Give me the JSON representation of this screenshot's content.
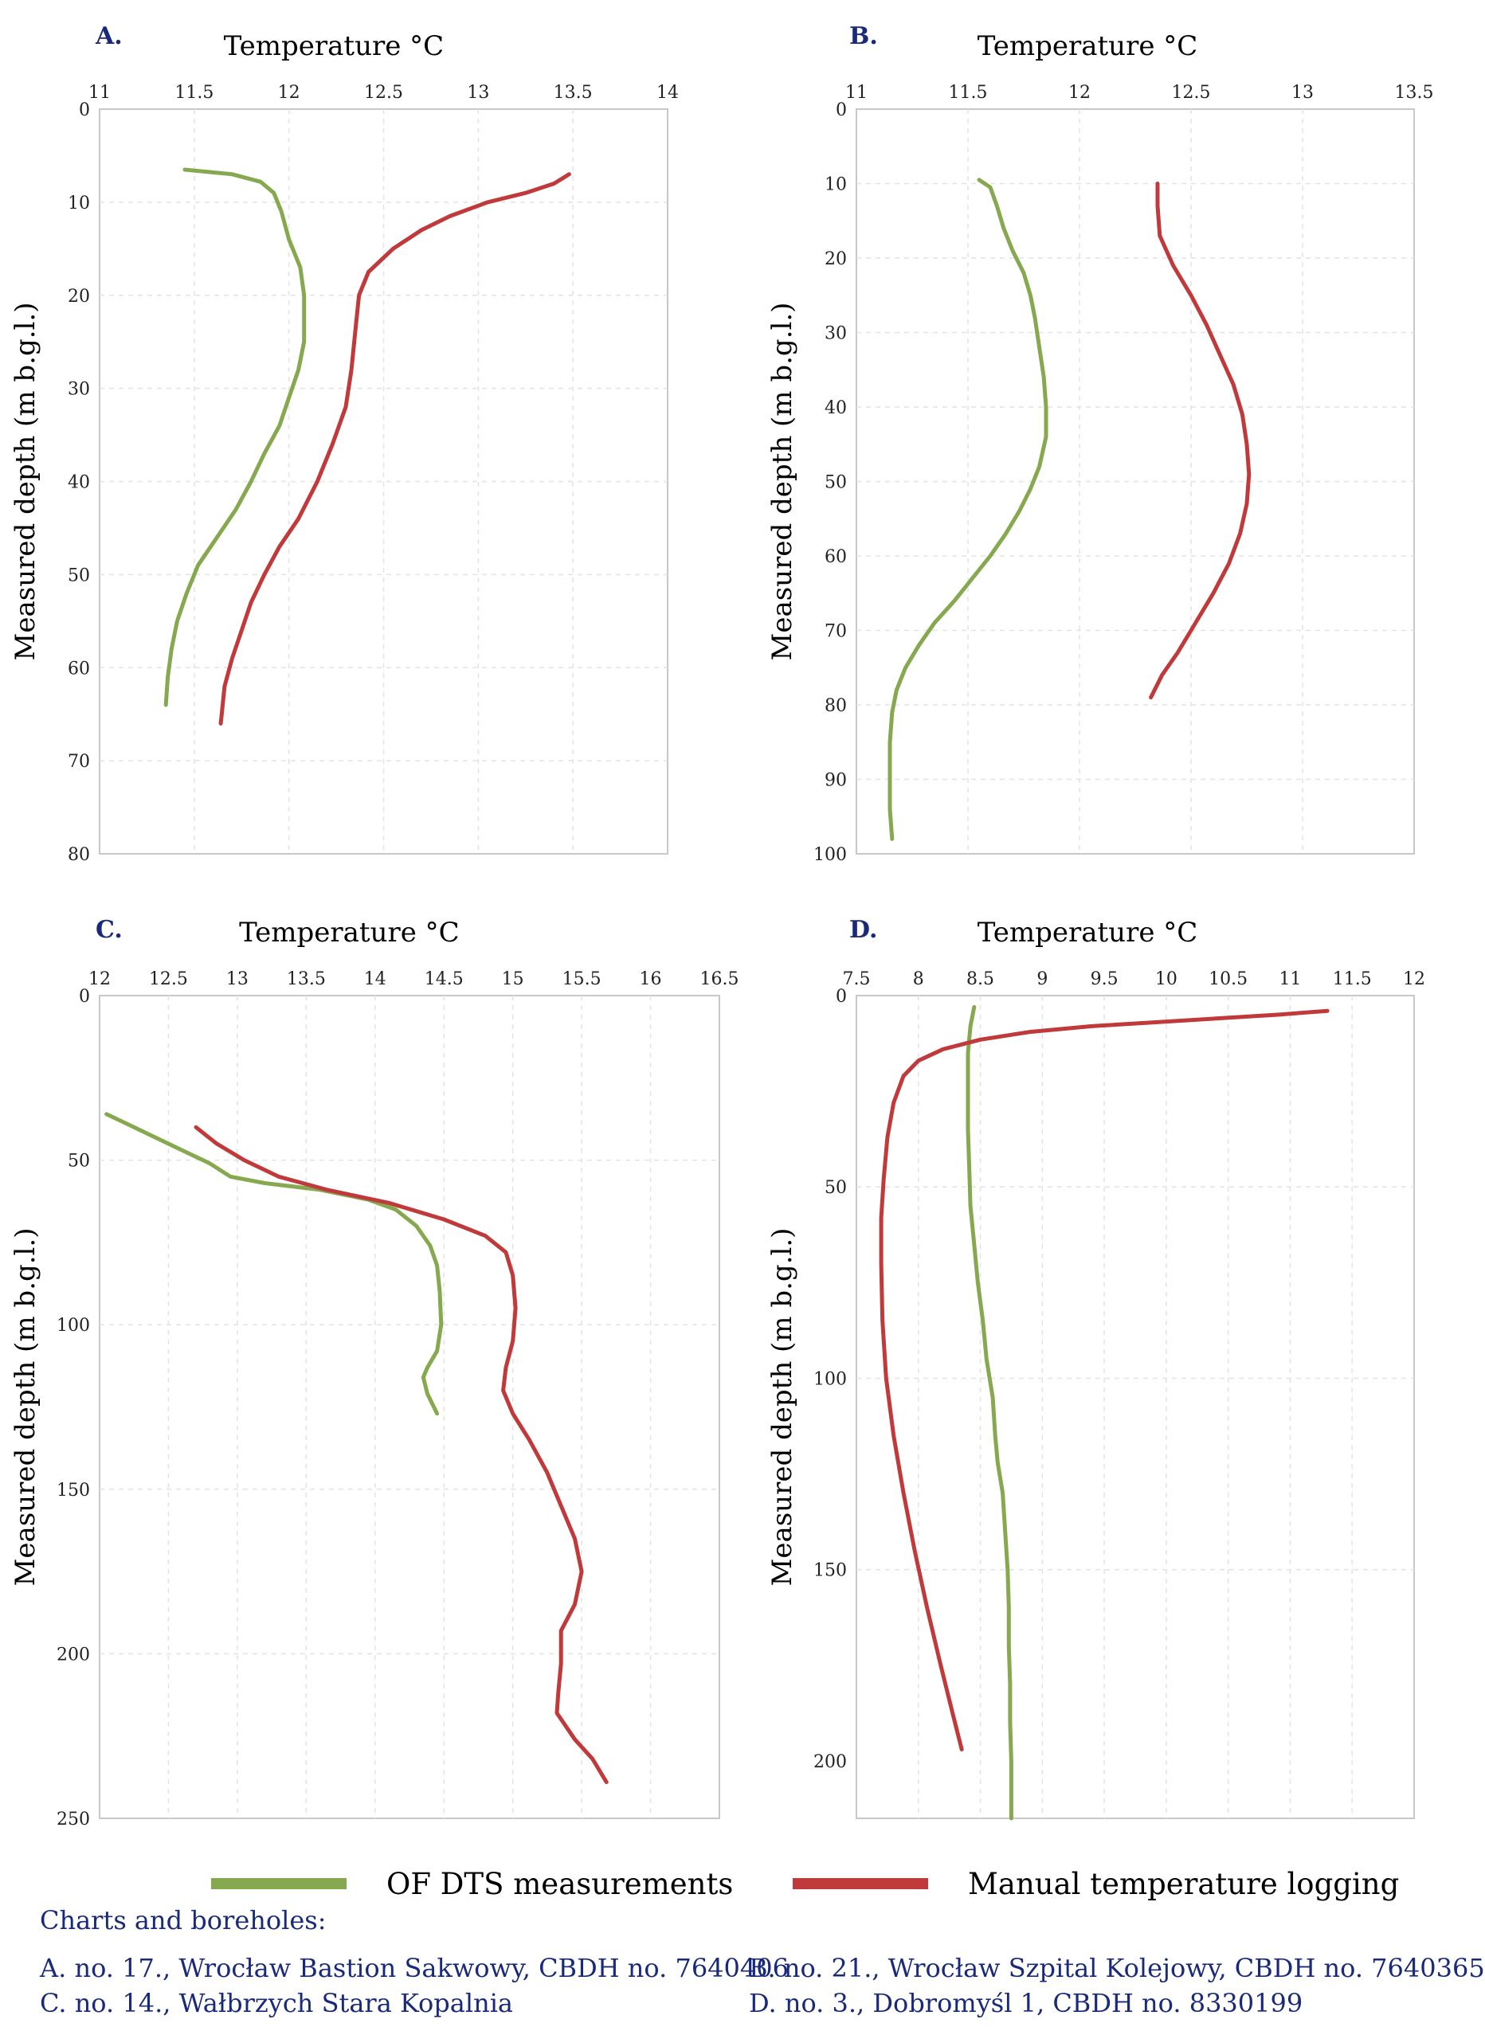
{
  "chart_data": [
    {
      "type": "line",
      "panel_label": "A.",
      "xlabel": "Temperature °C",
      "ylabel": "Measured depth (m b.g.l.)",
      "xlim": [
        11,
        14
      ],
      "ylim": [
        0,
        80
      ],
      "x_ticks": [
        "11",
        "11.5",
        "12",
        "12.5",
        "13",
        "13.5",
        "14"
      ],
      "y_ticks": [
        "0",
        "10",
        "20",
        "30",
        "40",
        "50",
        "60",
        "70",
        "80"
      ],
      "x_axis_position": "top",
      "y_inverted": true,
      "grid": true,
      "series": [
        {
          "name": "OF DTS measurements",
          "color": "#86a94f",
          "points": [
            [
              11.45,
              6.5
            ],
            [
              11.7,
              7
            ],
            [
              11.85,
              7.8
            ],
            [
              11.92,
              9
            ],
            [
              11.96,
              11
            ],
            [
              12.0,
              14
            ],
            [
              12.06,
              17
            ],
            [
              12.08,
              20
            ],
            [
              12.08,
              25
            ],
            [
              12.05,
              28
            ],
            [
              12.0,
              31
            ],
            [
              11.95,
              34
            ],
            [
              11.87,
              37
            ],
            [
              11.8,
              40
            ],
            [
              11.72,
              43
            ],
            [
              11.62,
              46
            ],
            [
              11.52,
              49
            ],
            [
              11.46,
              52
            ],
            [
              11.41,
              55
            ],
            [
              11.38,
              58
            ],
            [
              11.36,
              61
            ],
            [
              11.35,
              64
            ]
          ]
        },
        {
          "name": "Manual temperature logging",
          "color": "#c0393b",
          "points": [
            [
              13.48,
              7
            ],
            [
              13.4,
              8
            ],
            [
              13.25,
              9
            ],
            [
              13.05,
              10
            ],
            [
              12.85,
              11.5
            ],
            [
              12.7,
              13
            ],
            [
              12.55,
              15
            ],
            [
              12.42,
              17.5
            ],
            [
              12.37,
              20
            ],
            [
              12.35,
              24
            ],
            [
              12.33,
              28
            ],
            [
              12.3,
              32
            ],
            [
              12.23,
              36
            ],
            [
              12.15,
              40
            ],
            [
              12.05,
              44
            ],
            [
              11.95,
              47
            ],
            [
              11.87,
              50
            ],
            [
              11.8,
              53
            ],
            [
              11.75,
              56
            ],
            [
              11.7,
              59
            ],
            [
              11.66,
              62
            ],
            [
              11.65,
              64
            ],
            [
              11.64,
              66
            ]
          ]
        }
      ]
    },
    {
      "type": "line",
      "panel_label": "B.",
      "xlabel": "Temperature °C",
      "ylabel": "Measured depth (m b.g.l.)",
      "xlim": [
        11,
        13.5
      ],
      "ylim": [
        0,
        100
      ],
      "x_ticks": [
        "11",
        "11.5",
        "12",
        "12.5",
        "13",
        "13.5"
      ],
      "y_ticks": [
        "0",
        "10",
        "20",
        "30",
        "40",
        "50",
        "60",
        "70",
        "80",
        "90",
        "100"
      ],
      "x_axis_position": "top",
      "y_inverted": true,
      "grid": true,
      "series": [
        {
          "name": "OF DTS measurements",
          "color": "#86a94f",
          "points": [
            [
              11.55,
              9.5
            ],
            [
              11.6,
              10.5
            ],
            [
              11.63,
              13
            ],
            [
              11.66,
              16
            ],
            [
              11.7,
              19
            ],
            [
              11.75,
              22
            ],
            [
              11.78,
              25
            ],
            [
              11.8,
              28
            ],
            [
              11.82,
              32
            ],
            [
              11.84,
              36
            ],
            [
              11.85,
              40
            ],
            [
              11.85,
              44
            ],
            [
              11.82,
              48
            ],
            [
              11.78,
              51
            ],
            [
              11.73,
              54
            ],
            [
              11.67,
              57
            ],
            [
              11.6,
              60
            ],
            [
              11.52,
              63
            ],
            [
              11.44,
              66
            ],
            [
              11.35,
              69
            ],
            [
              11.28,
              72
            ],
            [
              11.22,
              75
            ],
            [
              11.18,
              78
            ],
            [
              11.16,
              81
            ],
            [
              11.15,
              85
            ],
            [
              11.15,
              90
            ],
            [
              11.15,
              94
            ],
            [
              11.16,
              98
            ]
          ]
        },
        {
          "name": "Manual temperature logging",
          "color": "#c0393b",
          "points": [
            [
              12.35,
              10
            ],
            [
              12.35,
              13
            ],
            [
              12.36,
              17
            ],
            [
              12.42,
              21
            ],
            [
              12.5,
              25
            ],
            [
              12.57,
              29
            ],
            [
              12.63,
              33
            ],
            [
              12.69,
              37
            ],
            [
              12.73,
              41
            ],
            [
              12.75,
              45
            ],
            [
              12.76,
              49
            ],
            [
              12.75,
              53
            ],
            [
              12.72,
              57
            ],
            [
              12.67,
              61
            ],
            [
              12.6,
              65
            ],
            [
              12.52,
              69
            ],
            [
              12.44,
              73
            ],
            [
              12.37,
              76
            ],
            [
              12.32,
              79
            ]
          ]
        }
      ]
    },
    {
      "type": "line",
      "panel_label": "C.",
      "xlabel": "Temperature °C",
      "ylabel": "Measured depth (m b.g.l.)",
      "xlim": [
        12,
        16.5
      ],
      "ylim": [
        0,
        250
      ],
      "x_ticks": [
        "12",
        "12.5",
        "13",
        "13.5",
        "14",
        "14.5",
        "15",
        "15.5",
        "16",
        "16.5"
      ],
      "y_ticks": [
        "0",
        "50",
        "100",
        "150",
        "200",
        "250"
      ],
      "x_axis_position": "top",
      "y_inverted": true,
      "grid": true,
      "series": [
        {
          "name": "OF DTS measurements",
          "color": "#86a94f",
          "points": [
            [
              12.05,
              36
            ],
            [
              12.2,
              39
            ],
            [
              12.4,
              43
            ],
            [
              12.6,
              47
            ],
            [
              12.8,
              51
            ],
            [
              12.95,
              55
            ],
            [
              13.2,
              57
            ],
            [
              13.6,
              59
            ],
            [
              13.95,
              62
            ],
            [
              14.15,
              65
            ],
            [
              14.3,
              70
            ],
            [
              14.4,
              76
            ],
            [
              14.45,
              82
            ],
            [
              14.47,
              90
            ],
            [
              14.48,
              100
            ],
            [
              14.45,
              108
            ],
            [
              14.38,
              113
            ],
            [
              14.35,
              116
            ],
            [
              14.38,
              121
            ],
            [
              14.45,
              127
            ]
          ]
        },
        {
          "name": "Manual temperature logging",
          "color": "#c0393b",
          "points": [
            [
              12.7,
              40
            ],
            [
              12.85,
              45
            ],
            [
              13.05,
              50
            ],
            [
              13.3,
              55
            ],
            [
              13.65,
              59
            ],
            [
              14.1,
              63
            ],
            [
              14.5,
              68
            ],
            [
              14.8,
              73
            ],
            [
              14.95,
              78
            ],
            [
              15.0,
              85
            ],
            [
              15.02,
              95
            ],
            [
              15.0,
              105
            ],
            [
              14.95,
              113
            ],
            [
              14.93,
              120
            ],
            [
              15.0,
              127
            ],
            [
              15.12,
              135
            ],
            [
              15.25,
              145
            ],
            [
              15.35,
              155
            ],
            [
              15.45,
              165
            ],
            [
              15.5,
              175
            ],
            [
              15.45,
              185
            ],
            [
              15.35,
              193
            ],
            [
              15.35,
              203
            ],
            [
              15.33,
              212
            ],
            [
              15.32,
              218
            ],
            [
              15.45,
              226
            ],
            [
              15.58,
              232
            ],
            [
              15.68,
              239
            ]
          ]
        }
      ]
    },
    {
      "type": "line",
      "panel_label": "D.",
      "xlabel": "Temperature °C",
      "ylabel": "Measured depth (m b.g.l.)",
      "xlim": [
        7.5,
        12
      ],
      "ylim": [
        0,
        215
      ],
      "x_ticks": [
        "7.5",
        "8",
        "8.5",
        "9",
        "9.5",
        "10",
        "10.5",
        "11",
        "11.5",
        "12"
      ],
      "y_ticks": [
        "0",
        "50",
        "100",
        "150",
        "200"
      ],
      "x_axis_position": "top",
      "y_inverted": true,
      "grid": true,
      "series": [
        {
          "name": "OF DTS measurements",
          "color": "#86a94f",
          "points": [
            [
              8.45,
              3
            ],
            [
              8.42,
              8
            ],
            [
              8.4,
              15
            ],
            [
              8.4,
              25
            ],
            [
              8.4,
              35
            ],
            [
              8.41,
              45
            ],
            [
              8.42,
              55
            ],
            [
              8.45,
              65
            ],
            [
              8.48,
              75
            ],
            [
              8.52,
              85
            ],
            [
              8.55,
              95
            ],
            [
              8.6,
              105
            ],
            [
              8.62,
              115
            ],
            [
              8.64,
              122
            ],
            [
              8.68,
              130
            ],
            [
              8.7,
              140
            ],
            [
              8.72,
              150
            ],
            [
              8.73,
              160
            ],
            [
              8.73,
              170
            ],
            [
              8.74,
              180
            ],
            [
              8.74,
              190
            ],
            [
              8.75,
              200
            ],
            [
              8.75,
              210
            ],
            [
              8.75,
              215
            ]
          ]
        },
        {
          "name": "Manual temperature logging",
          "color": "#c0393b",
          "points": [
            [
              11.3,
              4
            ],
            [
              10.9,
              5
            ],
            [
              10.4,
              6
            ],
            [
              9.9,
              7
            ],
            [
              9.4,
              8
            ],
            [
              8.9,
              9.5
            ],
            [
              8.5,
              11.5
            ],
            [
              8.2,
              14
            ],
            [
              8.0,
              17
            ],
            [
              7.88,
              21
            ],
            [
              7.8,
              28
            ],
            [
              7.75,
              37
            ],
            [
              7.72,
              48
            ],
            [
              7.7,
              58
            ],
            [
              7.7,
              70
            ],
            [
              7.71,
              85
            ],
            [
              7.74,
              100
            ],
            [
              7.8,
              115
            ],
            [
              7.88,
              130
            ],
            [
              7.97,
              145
            ],
            [
              8.07,
              160
            ],
            [
              8.18,
              175
            ],
            [
              8.28,
              188
            ],
            [
              8.35,
              197
            ]
          ]
        }
      ]
    }
  ],
  "legend": {
    "items": [
      {
        "label": "OF DTS measurements",
        "color": "#86a94f"
      },
      {
        "label": "Manual temperature logging",
        "color": "#c0393b"
      }
    ]
  },
  "caption": {
    "title": "Charts and boreholes:",
    "items": [
      "A. no. 17., Wrocław Bastion Sakwowy, CBDH no. 7640406",
      "B. no. 21., Wrocław Szpital Kolejowy, CBDH no. 7640365",
      "C. no. 14., Wałbrzych Stara Kopalnia",
      "D. no. 3., Dobromyśl 1, CBDH no. 8330199"
    ]
  }
}
